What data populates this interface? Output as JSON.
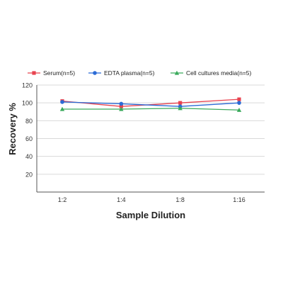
{
  "chart_data": {
    "type": "line",
    "title": "",
    "xlabel": "Sample Dilution",
    "ylabel": "Recovery %",
    "categories": [
      "1:2",
      "1:4",
      "1:8",
      "1:16"
    ],
    "yticks": [
      20,
      40,
      60,
      80,
      100,
      120
    ],
    "ylim": [
      0,
      120
    ],
    "grid": true,
    "legend_position": "top",
    "series": [
      {
        "name": "Serum(n=5)",
        "color": "#e8434f",
        "marker": "square",
        "values": [
          102,
          96,
          100,
          104
        ]
      },
      {
        "name": "EDTA plasma(n=5)",
        "color": "#2b6bd6",
        "marker": "circle",
        "values": [
          101,
          99,
          96,
          100
        ]
      },
      {
        "name": "Cell cultures media(n=5)",
        "color": "#3aaa5c",
        "marker": "triangle",
        "values": [
          93,
          93,
          94,
          92
        ]
      }
    ]
  }
}
